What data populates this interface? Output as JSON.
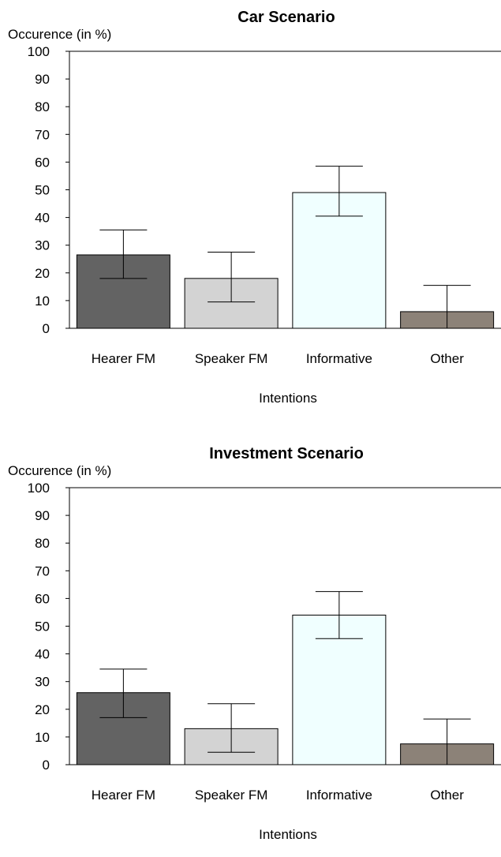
{
  "chart_data": [
    {
      "type": "bar",
      "title": "Car Scenario",
      "ylabel": "Occurence (in %)",
      "xlabel": "Intentions",
      "ylim": [
        0,
        100
      ],
      "yticks": [
        0,
        10,
        20,
        30,
        40,
        50,
        60,
        70,
        80,
        90,
        100
      ],
      "grid": false,
      "categories": [
        "Hearer FM",
        "Speaker FM",
        "Informative",
        "Other"
      ],
      "values": [
        26.5,
        18,
        49,
        6
      ],
      "error_bars": {
        "low": [
          18,
          9.5,
          40.5,
          0
        ],
        "high": [
          35.5,
          27.5,
          58.5,
          15.5
        ]
      },
      "colors": [
        "#636363",
        "#d3d3d3",
        "#f0ffff",
        "#8c8278"
      ]
    },
    {
      "type": "bar",
      "title": "Investment Scenario",
      "ylabel": "Occurence (in %)",
      "xlabel": "Intentions",
      "ylim": [
        0,
        100
      ],
      "yticks": [
        0,
        10,
        20,
        30,
        40,
        50,
        60,
        70,
        80,
        90,
        100
      ],
      "grid": false,
      "categories": [
        "Hearer FM",
        "Speaker FM",
        "Informative",
        "Other"
      ],
      "values": [
        26,
        13,
        54,
        7.5
      ],
      "error_bars": {
        "low": [
          17,
          4.5,
          45.5,
          0
        ],
        "high": [
          34.5,
          22,
          62.5,
          16.5
        ]
      },
      "colors": [
        "#636363",
        "#d3d3d3",
        "#f0ffff",
        "#8c8278"
      ]
    }
  ]
}
